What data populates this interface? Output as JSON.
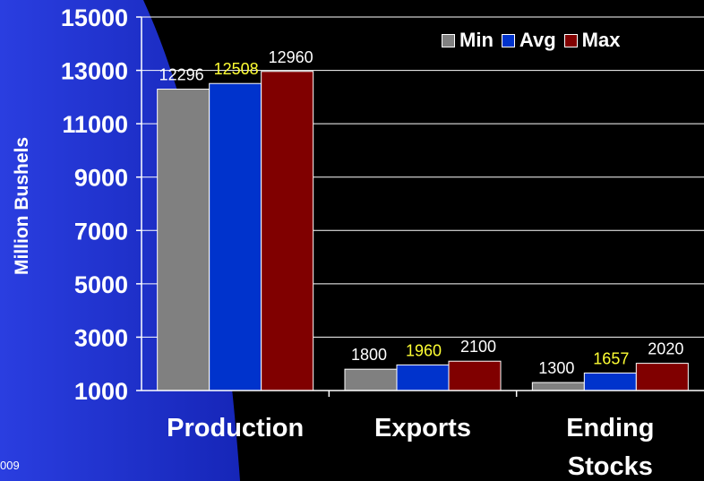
{
  "slide": {
    "footer": "009",
    "background": "#000000",
    "accent_blue": "#1a2bcc"
  },
  "chart_data": {
    "type": "bar",
    "categories": [
      "Production",
      "Exports",
      "Ending Stocks"
    ],
    "category_lines": [
      [
        "Production"
      ],
      [
        "Exports"
      ],
      [
        "Ending",
        "Stocks"
      ]
    ],
    "series": [
      {
        "name": "Min",
        "values": [
          12296,
          1800,
          1300
        ],
        "color": "#808080",
        "label_color": "#ffffff"
      },
      {
        "name": "Avg",
        "values": [
          12508,
          1960,
          1657
        ],
        "color": "#0033cc",
        "label_color": "#ffff33"
      },
      {
        "name": "Max",
        "values": [
          12960,
          2100,
          2020
        ],
        "color": "#800000",
        "label_color": "#ffffff"
      }
    ],
    "ylabel": "Million Bushels",
    "xlabel": "",
    "ylim": [
      1000,
      15000
    ],
    "yticks": [
      1000,
      3000,
      5000,
      7000,
      9000,
      11000,
      13000,
      15000
    ],
    "grid": true,
    "legend_position": "top-right"
  }
}
